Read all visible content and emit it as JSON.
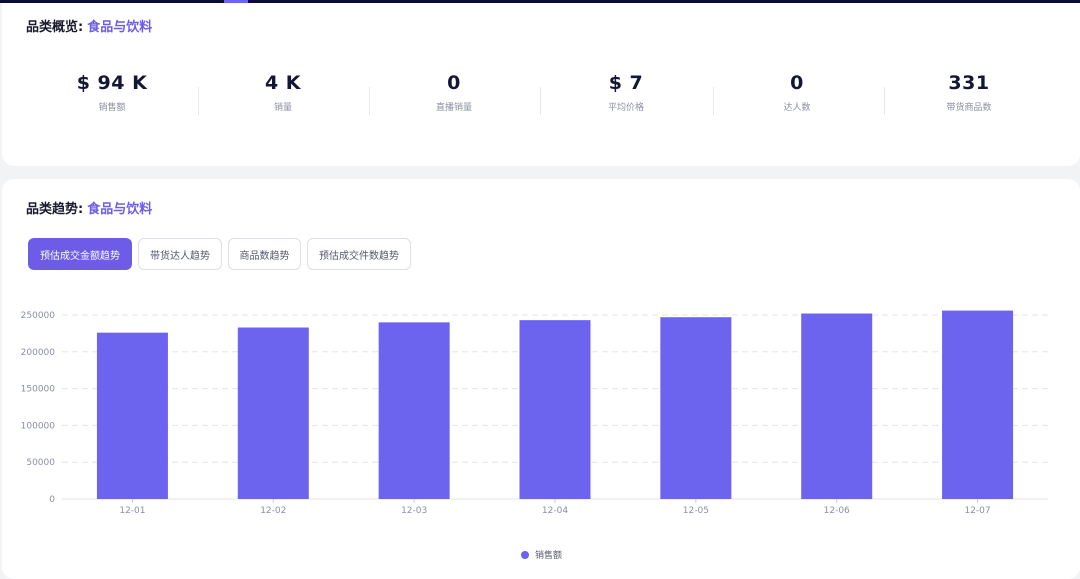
{
  "colors": {
    "accent": "#6c5ce7",
    "bar": "#6c63ef",
    "topbar": "#0b0b3a"
  },
  "overview": {
    "title": "品类概览:",
    "category": "食品与饮料",
    "stats": [
      {
        "value": "$ 94 K",
        "label": "销售额"
      },
      {
        "value": "4 K",
        "label": "销量"
      },
      {
        "value": "0",
        "label": "直播销量"
      },
      {
        "value": "$ 7",
        "label": "平均价格"
      },
      {
        "value": "0",
        "label": "达人数"
      },
      {
        "value": "331",
        "label": "带货商品数"
      }
    ]
  },
  "trend": {
    "title": "品类趋势:",
    "category": "食品与饮料",
    "tabs": [
      "预估成交金额趋势",
      "带货达人趋势",
      "商品数趋势",
      "预估成交件数趋势"
    ],
    "active_tab": "预估成交金额趋势"
  },
  "chart_data": {
    "type": "bar",
    "categories": [
      "12-01",
      "12-02",
      "12-03",
      "12-04",
      "12-05",
      "12-06",
      "12-07"
    ],
    "series": [
      {
        "name": "销售额",
        "values": [
          226000,
          233000,
          240000,
          243000,
          247000,
          252000,
          256000
        ]
      }
    ],
    "yticks": [
      0,
      50000,
      100000,
      150000,
      200000,
      250000
    ],
    "ylim": [
      0,
      250000
    ],
    "grid": true,
    "legend_position": "bottom-center"
  }
}
